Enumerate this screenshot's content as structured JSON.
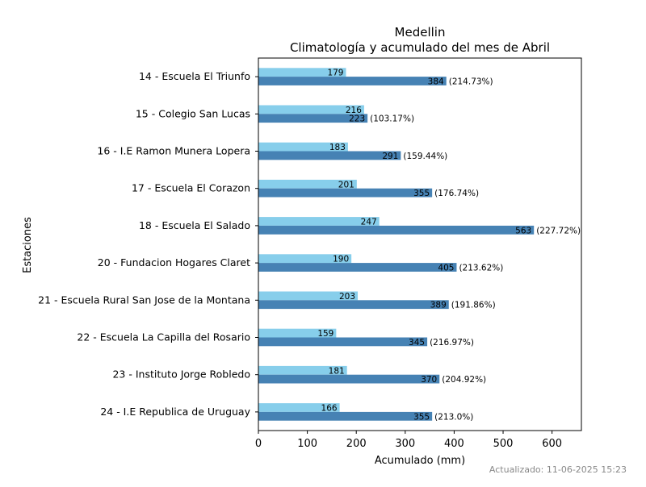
{
  "chart_data": {
    "type": "bar",
    "orientation": "horizontal",
    "title": "Medellin",
    "subtitle": "Climatología y acumulado del mes de Abril",
    "xlabel": "Acumulado (mm)",
    "ylabel": "Estaciones",
    "xlim": [
      0,
      660
    ],
    "xticks": [
      0,
      100,
      200,
      300,
      400,
      500,
      600
    ],
    "grid": false,
    "categories": [
      "14 - Escuela El Triunfo",
      "15 - Colegio San Lucas",
      "16 - I.E Ramon Munera Lopera",
      "17 - Escuela El Corazon",
      "18 - Escuela El Salado",
      "20 - Fundacion Hogares Claret",
      "21 - Escuela Rural San Jose de la Montana",
      "22 - Escuela La Capilla del Rosario",
      "23 - Instituto Jorge Robledo",
      "24 - I.E Republica de Uruguay"
    ],
    "series": [
      {
        "color": "#87ceeb",
        "values": [
          179,
          216,
          183,
          201,
          247,
          190,
          203,
          159,
          181,
          166
        ]
      },
      {
        "color": "#4682b4",
        "values": [
          384,
          223,
          291,
          355,
          563,
          405,
          389,
          345,
          370,
          355
        ],
        "pct_labels": [
          "(214.73%)",
          "(103.17%)",
          "(159.44%)",
          "(176.74%)",
          "(227.72%)",
          "(213.62%)",
          "(191.86%)",
          "(216.97%)",
          "(204.92%)",
          "(213.0%)"
        ]
      }
    ]
  },
  "footer": {
    "updated": "Actualizado: 11-06-2025 15:23"
  }
}
